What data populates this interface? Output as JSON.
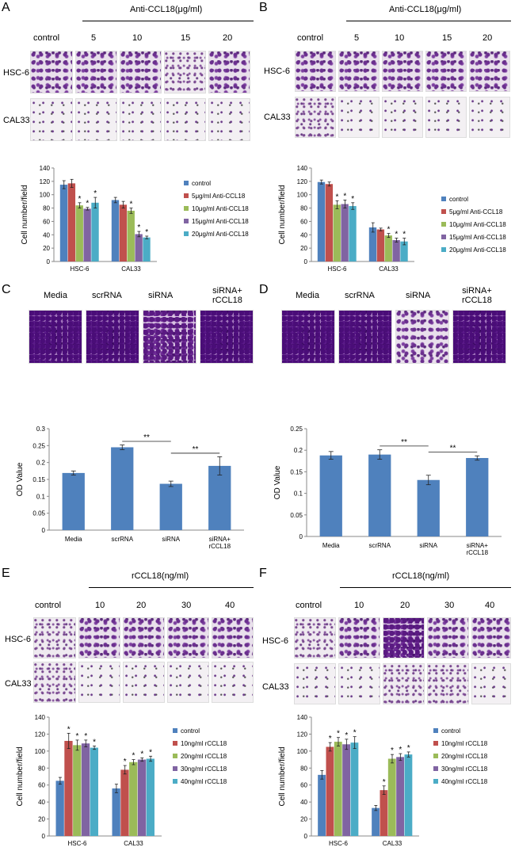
{
  "panels": [
    {
      "id": "A",
      "letter": "A",
      "treatment_header": "Anti-CCL18(μg/ml)",
      "columns": [
        "control",
        "5",
        "10",
        "15",
        "20"
      ],
      "rows": [
        "HSC-6",
        "CAL33"
      ]
    },
    {
      "id": "B",
      "letter": "B",
      "treatment_header": "Anti-CCL18(μg/ml)",
      "columns": [
        "control",
        "5",
        "10",
        "15",
        "20"
      ],
      "rows": [
        "HSC-6",
        "CAL33"
      ]
    },
    {
      "id": "C",
      "letter": "C",
      "columns": [
        "Media",
        "scrRNA",
        "siRNA",
        "siRNA+\nrCCL18"
      ],
      "rows": []
    },
    {
      "id": "D",
      "letter": "D",
      "columns": [
        "Media",
        "scrRNA",
        "siRNA",
        "siRNA+\nrCCL18"
      ],
      "rows": []
    },
    {
      "id": "E",
      "letter": "E",
      "treatment_header": "rCCL18(ng/ml)",
      "columns": [
        "control",
        "10",
        "20",
        "30",
        "40"
      ],
      "rows": [
        "HSC-6",
        "CAL33"
      ]
    },
    {
      "id": "F",
      "letter": "F",
      "treatment_header": "rCCL18(ng/ml)",
      "columns": [
        "control",
        "10",
        "20",
        "30",
        "40"
      ],
      "rows": [
        "HSC-6",
        "CAL33"
      ]
    }
  ],
  "chart_data": [
    {
      "panel": "A",
      "type": "bar",
      "ylabel": "Cell number/field",
      "ylim": [
        0,
        140
      ],
      "yticks": [
        0,
        20,
        40,
        60,
        80,
        100,
        120,
        140
      ],
      "categories": [
        "HSC-6",
        "CAL33"
      ],
      "legend_position": "right",
      "series": [
        {
          "name": "control",
          "color": "#4f81bd",
          "values": [
            115,
            92
          ],
          "errors": [
            6,
            4
          ],
          "star": [
            false,
            false
          ]
        },
        {
          "name": "5μg/ml Anti-CCL18",
          "color": "#c0504d",
          "values": [
            117,
            85
          ],
          "errors": [
            6,
            5
          ],
          "star": [
            false,
            false
          ]
        },
        {
          "name": "10μg/ml Anti-CCL18",
          "color": "#9bbb59",
          "values": [
            84,
            76
          ],
          "errors": [
            4,
            4
          ],
          "star": [
            true,
            true
          ]
        },
        {
          "name": "15μg/ml Anti-CCL18",
          "color": "#8064a2",
          "values": [
            79,
            41
          ],
          "errors": [
            2,
            4
          ],
          "star": [
            true,
            true
          ]
        },
        {
          "name": "20μg/ml Anti-CCL18",
          "color": "#4bacc6",
          "values": [
            88,
            36
          ],
          "errors": [
            8,
            2
          ],
          "star": [
            true,
            true
          ]
        }
      ]
    },
    {
      "panel": "B",
      "type": "bar",
      "ylabel": "Cell number/field",
      "ylim": [
        0,
        140
      ],
      "yticks": [
        0,
        20,
        40,
        60,
        80,
        100,
        120,
        140
      ],
      "categories": [
        "HSC-6",
        "CAL33"
      ],
      "legend_position": "right",
      "series": [
        {
          "name": "control",
          "color": "#4f81bd",
          "values": [
            119,
            51
          ],
          "errors": [
            3,
            7
          ],
          "star": [
            false,
            false
          ]
        },
        {
          "name": "5μg/ml Anti-CCL18",
          "color": "#c0504d",
          "values": [
            116,
            48
          ],
          "errors": [
            3,
            2
          ],
          "star": [
            false,
            false
          ]
        },
        {
          "name": "10μg/ml Anti-CCL18",
          "color": "#9bbb59",
          "values": [
            85,
            39
          ],
          "errors": [
            6,
            3
          ],
          "star": [
            true,
            true
          ]
        },
        {
          "name": "15μg/ml Anti-CCL18",
          "color": "#8064a2",
          "values": [
            86,
            32
          ],
          "errors": [
            6,
            3
          ],
          "star": [
            true,
            true
          ]
        },
        {
          "name": "20μg/ml Anti-CCL18",
          "color": "#4bacc6",
          "values": [
            83,
            30
          ],
          "errors": [
            5,
            5
          ],
          "star": [
            true,
            true
          ]
        }
      ]
    },
    {
      "panel": "C",
      "type": "bar",
      "ylabel": "OD Value",
      "ylim": [
        0,
        0.3
      ],
      "yticks": [
        "0",
        "0.05",
        "0.1",
        "0.15",
        "0.2",
        "0.25",
        "0.3"
      ],
      "categories": [
        "Media",
        "scrRNA",
        "siRNA",
        "siRNA+\nrCCL18"
      ],
      "color": "#4f81bd",
      "values": [
        0.169,
        0.245,
        0.137,
        0.19
      ],
      "errors": [
        0.006,
        0.007,
        0.008,
        0.027
      ],
      "brackets": [
        {
          "from": 1,
          "to": 2,
          "label": "**"
        },
        {
          "from": 2,
          "to": 3,
          "label": "**"
        }
      ]
    },
    {
      "panel": "D",
      "type": "bar",
      "ylabel": "OD  Value",
      "ylim": [
        0,
        0.25
      ],
      "yticks": [
        "0",
        "0.05",
        "0.1",
        "0.15",
        "0.2",
        "0.25"
      ],
      "categories": [
        "Media",
        "scrRNA",
        "siRNA",
        "siRNA+\nrCCL18"
      ],
      "color": "#4f81bd",
      "values": [
        0.188,
        0.19,
        0.131,
        0.182
      ],
      "errors": [
        0.009,
        0.011,
        0.011,
        0.005
      ],
      "brackets": [
        {
          "from": 1,
          "to": 2,
          "label": "**"
        },
        {
          "from": 2,
          "to": 3,
          "label": "**"
        }
      ]
    },
    {
      "panel": "E",
      "type": "bar",
      "ylabel": "Cell number/field",
      "ylim": [
        0,
        140
      ],
      "yticks": [
        0,
        20,
        40,
        60,
        80,
        100,
        120,
        140
      ],
      "categories": [
        "HSC-6",
        "CAL33"
      ],
      "legend_position": "right",
      "series": [
        {
          "name": "control",
          "color": "#4f81bd",
          "values": [
            65,
            56
          ],
          "errors": [
            4,
            5
          ],
          "star": [
            false,
            false
          ]
        },
        {
          "name": "10ng/ml rCCL18",
          "color": "#c0504d",
          "values": [
            112,
            78
          ],
          "errors": [
            9,
            5
          ],
          "star": [
            true,
            true
          ]
        },
        {
          "name": "20ng/ml rCCL18",
          "color": "#9bbb59",
          "values": [
            107,
            87
          ],
          "errors": [
            6,
            3
          ],
          "star": [
            true,
            true
          ]
        },
        {
          "name": "30ng/ml rCCL18",
          "color": "#8064a2",
          "values": [
            109,
            90
          ],
          "errors": [
            4,
            2
          ],
          "star": [
            true,
            true
          ]
        },
        {
          "name": "40ng/ml rCCL18",
          "color": "#4bacc6",
          "values": [
            104,
            91
          ],
          "errors": [
            2,
            3
          ],
          "star": [
            true,
            true
          ]
        }
      ]
    },
    {
      "panel": "F",
      "type": "bar",
      "ylabel": "Cell number/field",
      "ylim": [
        0,
        140
      ],
      "yticks": [
        0,
        20,
        40,
        60,
        80,
        100,
        120,
        140
      ],
      "categories": [
        "HSC-6",
        "CAL33"
      ],
      "legend_position": "right",
      "series": [
        {
          "name": "control",
          "color": "#4f81bd",
          "values": [
            72,
            33
          ],
          "errors": [
            5,
            3
          ],
          "star": [
            false,
            false
          ]
        },
        {
          "name": "10ng/ml rCCL18",
          "color": "#c0504d",
          "values": [
            105,
            54
          ],
          "errors": [
            5,
            5
          ],
          "star": [
            true,
            true
          ]
        },
        {
          "name": "20ng/ml rCCL18",
          "color": "#9bbb59",
          "values": [
            111,
            91
          ],
          "errors": [
            5,
            5
          ],
          "star": [
            true,
            true
          ]
        },
        {
          "name": "30ng/ml rCCL18",
          "color": "#8064a2",
          "values": [
            108,
            93
          ],
          "errors": [
            6,
            4
          ],
          "star": [
            true,
            true
          ]
        },
        {
          "name": "40ng/ml rCCL18",
          "color": "#4bacc6",
          "values": [
            110,
            96
          ],
          "errors": [
            7,
            3
          ],
          "star": [
            true,
            true
          ]
        }
      ]
    }
  ]
}
